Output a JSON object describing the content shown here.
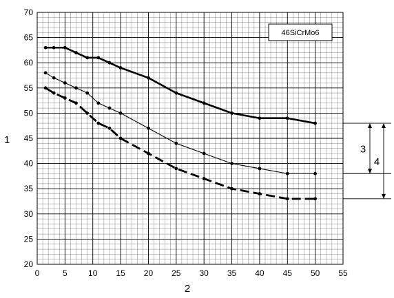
{
  "chart_data": {
    "type": "line",
    "title": "",
    "xlabel": "2",
    "ylabel": "1",
    "xlim": [
      0,
      55
    ],
    "ylim": [
      20,
      70
    ],
    "x_ticks": [
      0,
      5,
      10,
      15,
      20,
      25,
      30,
      35,
      40,
      45,
      50,
      55
    ],
    "y_ticks": [
      20,
      25,
      30,
      35,
      40,
      45,
      50,
      55,
      60,
      65,
      70
    ],
    "grid": true,
    "legend": {
      "text": "46SiCrMo6",
      "placement": "top-right"
    },
    "series": [
      {
        "style": "thick-solid",
        "x": [
          1.5,
          3,
          5,
          7,
          9,
          11,
          13,
          15,
          20,
          25,
          30,
          35,
          40,
          45,
          50
        ],
        "y": [
          63,
          63,
          63,
          62,
          61,
          61,
          60,
          59,
          57,
          54,
          52,
          50,
          49,
          49,
          48
        ]
      },
      {
        "style": "thin-solid",
        "x": [
          1.5,
          3,
          5,
          7,
          9,
          11,
          13,
          15,
          20,
          25,
          30,
          35,
          40,
          45,
          50
        ],
        "y": [
          58,
          57,
          56,
          55,
          54,
          52,
          51,
          50,
          47,
          44,
          42,
          40,
          39,
          38,
          38
        ]
      },
      {
        "style": "thick-dashed",
        "x": [
          1.5,
          3,
          5,
          7,
          9,
          11,
          13,
          15,
          20,
          25,
          30,
          35,
          40,
          45,
          50
        ],
        "y": [
          55,
          54,
          53,
          52,
          50,
          48,
          47,
          45,
          42,
          39,
          37,
          35,
          34,
          33,
          33
        ]
      }
    ],
    "annotations": [
      {
        "label": "3",
        "from": 48,
        "to": 38
      },
      {
        "label": "4",
        "from": 48,
        "to": 33
      }
    ]
  }
}
